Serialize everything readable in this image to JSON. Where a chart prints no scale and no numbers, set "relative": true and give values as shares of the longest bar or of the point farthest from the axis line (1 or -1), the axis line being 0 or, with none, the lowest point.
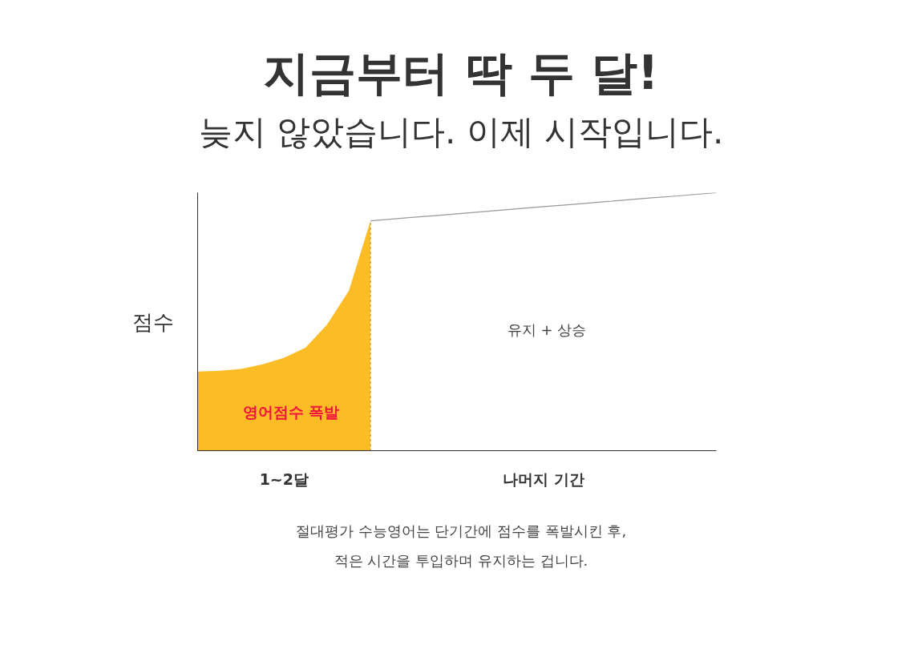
{
  "chart_data": {
    "type": "area",
    "title": "지금부터 딱 두 달!",
    "subtitle": "늦지 않았습니다. 이제 시작입니다.",
    "ylabel": "점수",
    "relative": true,
    "categories": [
      null,
      null,
      null,
      null,
      "1~2달",
      null,
      null,
      null,
      null,
      null,
      null,
      null,
      null,
      null,
      null,
      null,
      "나머지 기간",
      null,
      null,
      null,
      null,
      null,
      null,
      null,
      null
    ],
    "series": [
      {
        "color": "#fbbc25",
        "values": [
          0.307,
          0.31,
          0.317,
          0.335,
          0.36,
          0.4,
          0.49,
          0.62,
          0.891,
          null,
          null,
          null,
          null,
          null,
          null,
          null,
          null,
          null,
          null,
          null,
          null,
          null,
          null,
          null,
          null
        ]
      },
      {
        "type": "line",
        "color": "#999999",
        "values": [
          null,
          null,
          null,
          null,
          null,
          null,
          null,
          null,
          0.891,
          0.898,
          0.905,
          0.911,
          0.918,
          0.925,
          0.932,
          0.939,
          0.946,
          0.952,
          0.959,
          0.966,
          0.973,
          0.98,
          0.986,
          0.993,
          1.0
        ]
      }
    ],
    "annotations": [
      "영어점수 폭발",
      "유지 + 상승",
      "절대평가 수능영어는 단기간에 점수를 폭발시킨 후,",
      "적은 시간을 투입하며 유지하는 겁니다."
    ],
    "grid": false
  }
}
